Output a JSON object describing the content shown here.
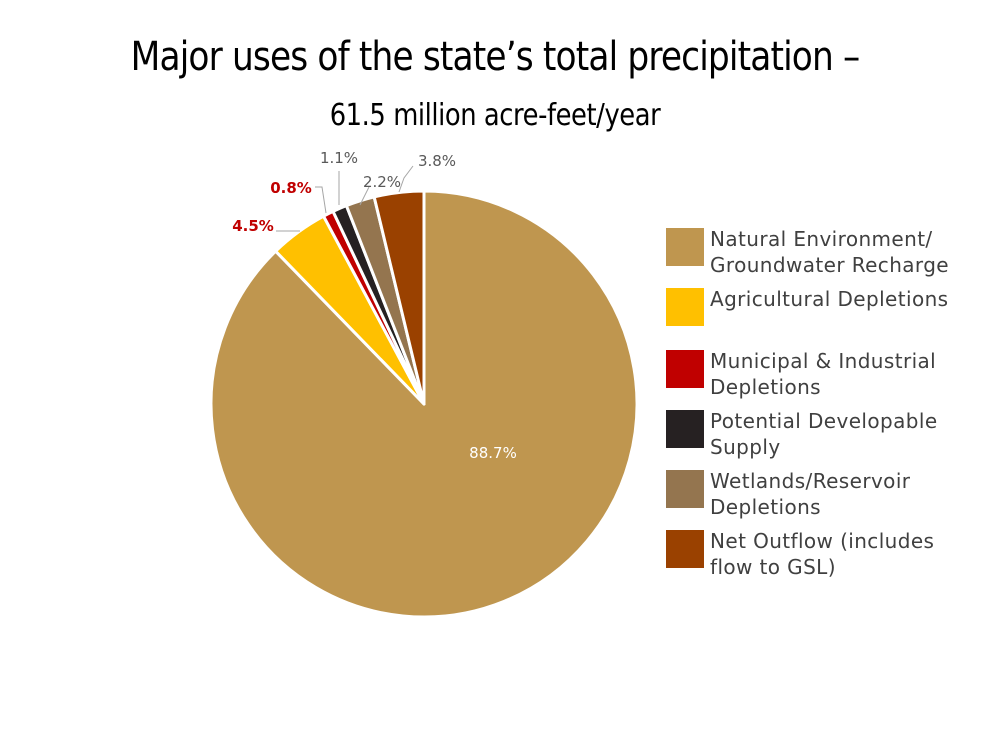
{
  "title": "Major uses of the state’s total precipitation –",
  "subtitle": "61.5 million acre-feet/year",
  "chart_data": {
    "type": "pie",
    "title": "Major uses of the state’s total precipitation –",
    "subtitle": "61.5 million acre-feet/year",
    "unit": "%",
    "legend_position": "right",
    "slices": [
      {
        "label": "Natural Environment/ Groundwater Recharge",
        "value": 88.7,
        "label_text": "88.7%",
        "color": "#bf964f",
        "label_color": "#ffffff"
      },
      {
        "label": "Agricultural Depletions",
        "value": 4.5,
        "label_text": "4.5%",
        "color": "#ffc000",
        "label_color": "#c00000"
      },
      {
        "label": "Municipal & Industrial Depletions",
        "value": 0.8,
        "label_text": "0.8%",
        "color": "#c00000",
        "label_color": "#c00000"
      },
      {
        "label": "Potential Developable Supply",
        "value": 1.1,
        "label_text": "1.1%",
        "color": "#262122",
        "label_color": "#595959"
      },
      {
        "label": "Wetlands/Reservoir Depletions",
        "value": 2.2,
        "label_text": "2.2%",
        "color": "#94754f",
        "label_color": "#595959"
      },
      {
        "label": "Net Outflow (includes flow to GSL)",
        "value": 3.8,
        "label_text": "3.8%",
        "color": "#9a4100",
        "label_color": "#595959"
      }
    ]
  },
  "legend": {
    "items": [
      {
        "line1": "Natural Environment/",
        "line2": "Groundwater Recharge",
        "color": "#bf964f"
      },
      {
        "line1": "Agricultural Depletions",
        "line2": "",
        "color": "#ffc000"
      },
      {
        "line1": "Municipal & Industrial",
        "line2": "Depletions",
        "color": "#c00000"
      },
      {
        "line1": "Potential Developable",
        "line2": "Supply",
        "color": "#262122"
      },
      {
        "line1": "Wetlands/Reservoir",
        "line2": "Depletions",
        "color": "#94754f"
      },
      {
        "line1": "Net Outflow (includes",
        "line2": "flow to GSL)",
        "color": "#9a4100"
      }
    ]
  }
}
